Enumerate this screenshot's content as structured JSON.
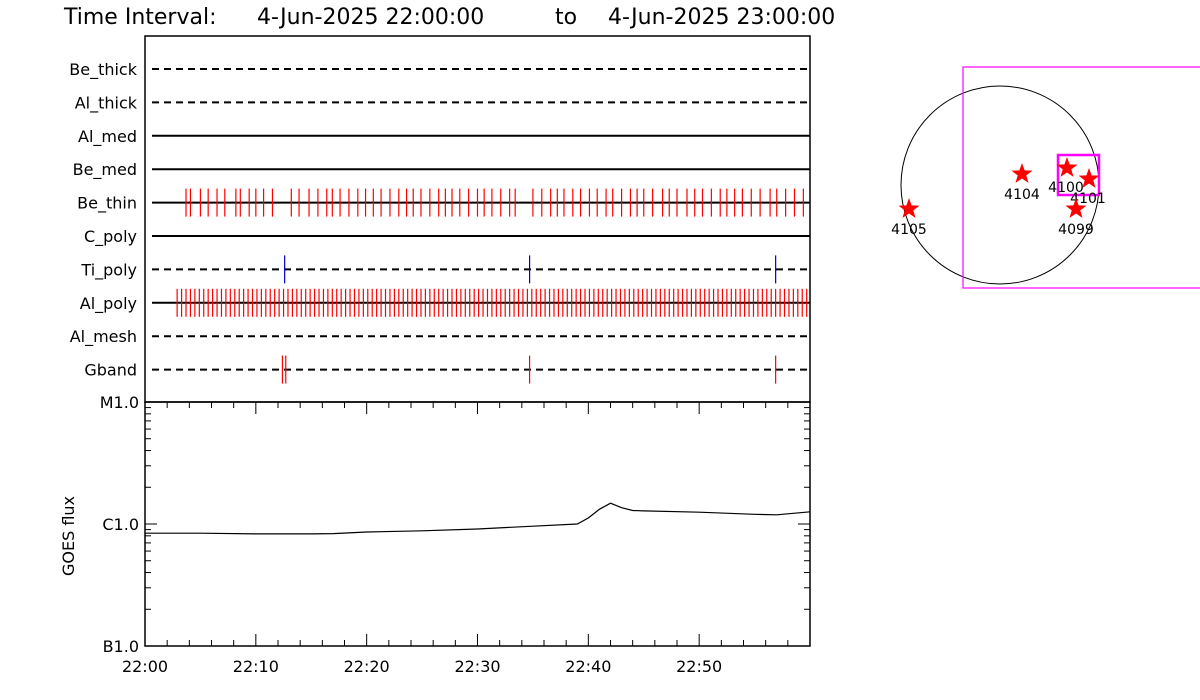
{
  "header": {
    "prefix": "Time Interval:",
    "start": "4-Jun-2025 22:00:00",
    "joiner": "to",
    "end": "4-Jun-2025 23:00:00"
  },
  "colors": {
    "axis": "#000000",
    "event_red": "#ff0000",
    "event_blue": "#0000cc",
    "fov_magenta": "#ff00ff",
    "star_red": "#ff0000"
  },
  "chart_data": [
    {
      "type": "timeline",
      "x_unit": "minutes after 22:00",
      "xlim": [
        0,
        60
      ],
      "rows": [
        {
          "label": "Be_thick",
          "line": "dashed",
          "events": []
        },
        {
          "label": "Al_thick",
          "line": "dashed",
          "events": []
        },
        {
          "label": "Al_med",
          "line": "solid",
          "events": []
        },
        {
          "label": "Be_med",
          "line": "solid",
          "events": []
        },
        {
          "label": "Be_thin",
          "line": "solid",
          "color": "red",
          "events": [
            3.7,
            4.1,
            5.0,
            5.7,
            6.5,
            7.2,
            8.2,
            8.6,
            9.4,
            10.0,
            10.7,
            11.5,
            13.2,
            13.9,
            14.8,
            15.6,
            16.4,
            16.9,
            17.6,
            18.4,
            19.2,
            19.9,
            20.6,
            21.3,
            22.1,
            22.9,
            23.6,
            24.2,
            24.9,
            25.7,
            26.5,
            27.1,
            27.7,
            28.4,
            29.2,
            30.0,
            30.6,
            31.3,
            32.1,
            32.9,
            33.4,
            35.0,
            35.8,
            36.6,
            37.2,
            37.8,
            38.6,
            39.3,
            40.1,
            40.8,
            41.6,
            42.2,
            43.0,
            43.8,
            44.4,
            45.0,
            45.8,
            46.7,
            47.3,
            48.0,
            48.9,
            49.6,
            50.3,
            51.1,
            51.9,
            52.5,
            53.2,
            53.9,
            54.7,
            55.5,
            56.4,
            57.0,
            57.8,
            58.6,
            59.4
          ]
        },
        {
          "label": "C_poly",
          "line": "solid",
          "events": []
        },
        {
          "label": "Ti_poly",
          "line": "dashed",
          "color": "blue",
          "events": [
            12.6,
            34.7,
            56.9
          ]
        },
        {
          "label": "Al_poly",
          "line": "solid",
          "color": "red",
          "events": [
            2.9,
            3.3,
            3.7,
            4.1,
            4.5,
            4.9,
            5.3,
            5.7,
            6.1,
            6.5,
            6.9,
            7.3,
            7.7,
            8.1,
            8.5,
            8.9,
            9.3,
            9.7,
            10.1,
            10.5,
            10.9,
            11.3,
            11.7,
            12.1,
            12.5,
            12.9,
            13.3,
            13.7,
            14.1,
            14.5,
            14.9,
            15.3,
            15.7,
            16.1,
            16.5,
            16.9,
            17.3,
            17.7,
            18.1,
            18.5,
            18.9,
            19.3,
            19.7,
            20.1,
            20.5,
            20.9,
            21.3,
            21.7,
            22.1,
            22.5,
            22.9,
            23.3,
            23.7,
            24.1,
            24.5,
            24.9,
            25.3,
            25.7,
            26.1,
            26.5,
            26.9,
            27.3,
            27.7,
            28.1,
            28.5,
            28.9,
            29.3,
            29.7,
            30.1,
            30.5,
            30.9,
            31.3,
            31.7,
            32.1,
            32.5,
            32.9,
            33.3,
            33.7,
            34.1,
            34.5,
            34.9,
            35.3,
            35.7,
            36.1,
            36.5,
            36.9,
            37.3,
            37.7,
            38.1,
            38.5,
            38.9,
            39.3,
            39.7,
            40.1,
            40.5,
            40.9,
            41.3,
            41.7,
            42.1,
            42.5,
            42.9,
            43.3,
            43.7,
            44.1,
            44.5,
            44.9,
            45.3,
            45.7,
            46.1,
            46.5,
            46.9,
            47.3,
            47.7,
            48.1,
            48.5,
            48.9,
            49.3,
            49.7,
            50.1,
            50.5,
            50.9,
            51.3,
            51.7,
            52.1,
            52.5,
            52.9,
            53.3,
            53.7,
            54.1,
            54.5,
            54.9,
            55.3,
            55.7,
            56.1,
            56.5,
            56.9,
            57.3,
            57.7,
            58.1,
            58.5,
            58.9,
            59.3,
            59.7
          ]
        },
        {
          "label": "Al_mesh",
          "line": "dashed",
          "events": []
        },
        {
          "label": "Gband",
          "line": "dashed",
          "color": "red",
          "events": [
            12.4,
            12.7,
            34.7,
            56.9
          ]
        }
      ]
    },
    {
      "type": "line",
      "ylabel": "GOES flux",
      "yscale": "log",
      "ylim": [
        1e-07,
        1e-05
      ],
      "yticks": [
        {
          "value": 1e-05,
          "label": "M1.0"
        },
        {
          "value": 1e-06,
          "label": "C1.0"
        },
        {
          "value": 1e-07,
          "label": "B1.0"
        }
      ],
      "xlim": [
        0,
        60
      ],
      "xticks": [
        {
          "value": 0,
          "label": "22:00"
        },
        {
          "value": 10,
          "label": "22:10"
        },
        {
          "value": 20,
          "label": "22:20"
        },
        {
          "value": 30,
          "label": "22:30"
        },
        {
          "value": 40,
          "label": "22:40"
        },
        {
          "value": 50,
          "label": "22:50"
        }
      ],
      "series": [
        {
          "x": [
            0,
            5,
            10,
            15,
            17,
            20,
            25,
            30,
            35,
            39,
            40,
            41,
            42,
            43,
            44,
            45,
            50,
            55,
            57,
            60
          ],
          "y": [
            8.4e-07,
            8.4e-07,
            8.3e-07,
            8.3e-07,
            8.35e-07,
            8.6e-07,
            8.8e-07,
            9.1e-07,
            9.6e-07,
            1e-06,
            1.12e-06,
            1.32e-06,
            1.48e-06,
            1.36e-06,
            1.29e-06,
            1.28e-06,
            1.25e-06,
            1.2e-06,
            1.19e-06,
            1.26e-06
          ]
        }
      ]
    }
  ],
  "sun_map": {
    "regions": [
      {
        "id": "4105",
        "label": "4105"
      },
      {
        "id": "4104",
        "label": "4104"
      },
      {
        "id": "4100",
        "label": "4100"
      },
      {
        "id": "4101",
        "label": "4101"
      },
      {
        "id": "4099",
        "label": "4099"
      }
    ]
  }
}
